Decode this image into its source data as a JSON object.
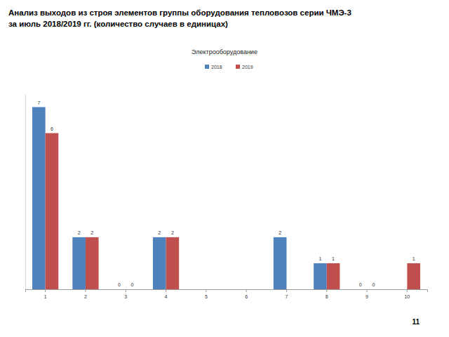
{
  "chart_data": {
    "type": "bar",
    "title": "Анализ выходов из строя элементов группы оборудования тепловозов серии ЧМЭ-3",
    "subtitle": "за июль 2018/2019 гг. (количество случаев в единицах)",
    "annotations": [
      "Электрооборудование",
      "11"
    ],
    "categories": [
      "1",
      "2",
      "3",
      "4",
      "5",
      "6",
      "7",
      "8",
      "9",
      "10"
    ],
    "series": [
      {
        "name": "2018",
        "color": "#4f81bd",
        "values": [
          7,
          2,
          0,
          2,
          null,
          null,
          2,
          1,
          0,
          null
        ]
      },
      {
        "name": "2019",
        "color": "#c0504d",
        "values": [
          6,
          2,
          0,
          2,
          null,
          null,
          null,
          1,
          0,
          1
        ]
      }
    ],
    "ylim": [
      0,
      7.5
    ],
    "yticks": [],
    "tick_labels": "x",
    "data_labels": true,
    "legend": "top",
    "grid": false
  }
}
